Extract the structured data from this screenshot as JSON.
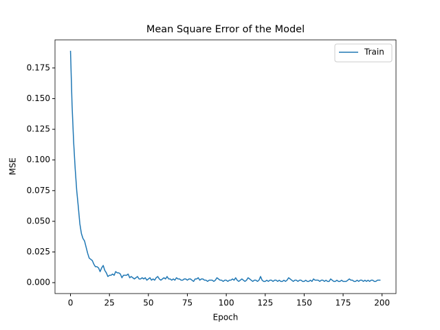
{
  "chart_data": {
    "type": "line",
    "title": "Mean Square Error of the Model",
    "x_label": "Epoch",
    "y_label": "MSE",
    "x": [
      0,
      1,
      2,
      3,
      4,
      5,
      6,
      7,
      8,
      9,
      10,
      11,
      12,
      13,
      14,
      15,
      16,
      17,
      18,
      19,
      20,
      21,
      22,
      23,
      24,
      25,
      26,
      27,
      28,
      29,
      30,
      31,
      32,
      33,
      34,
      35,
      36,
      37,
      38,
      39,
      40,
      41,
      42,
      43,
      44,
      45,
      46,
      47,
      48,
      49,
      50,
      51,
      52,
      53,
      54,
      55,
      56,
      57,
      58,
      59,
      60,
      61,
      62,
      63,
      64,
      65,
      66,
      67,
      68,
      69,
      70,
      71,
      72,
      73,
      74,
      75,
      76,
      77,
      78,
      79,
      80,
      81,
      82,
      83,
      84,
      85,
      86,
      87,
      88,
      89,
      90,
      91,
      92,
      93,
      94,
      95,
      96,
      97,
      98,
      99,
      100,
      101,
      102,
      103,
      104,
      105,
      106,
      107,
      108,
      109,
      110,
      111,
      112,
      113,
      114,
      115,
      116,
      117,
      118,
      119,
      120,
      121,
      122,
      123,
      124,
      125,
      126,
      127,
      128,
      129,
      130,
      131,
      132,
      133,
      134,
      135,
      136,
      137,
      138,
      139,
      140,
      141,
      142,
      143,
      144,
      145,
      146,
      147,
      148,
      149,
      150,
      151,
      152,
      153,
      154,
      155,
      156,
      157,
      158,
      159,
      160,
      161,
      162,
      163,
      164,
      165,
      166,
      167,
      168,
      169,
      170,
      171,
      172,
      173,
      174,
      175,
      176,
      177,
      178,
      179,
      180,
      181,
      182,
      183,
      184,
      185,
      186,
      187,
      188,
      189,
      190,
      191,
      192,
      193,
      194,
      195,
      196,
      197,
      198,
      199
    ],
    "series": [
      {
        "name": "Train",
        "color": "#1f77b4",
        "values": [
          0.189,
          0.145,
          0.115,
          0.093,
          0.075,
          0.062,
          0.048,
          0.04,
          0.036,
          0.034,
          0.029,
          0.024,
          0.02,
          0.019,
          0.018,
          0.015,
          0.013,
          0.013,
          0.012,
          0.009,
          0.012,
          0.014,
          0.01,
          0.008,
          0.005,
          0.006,
          0.006,
          0.007,
          0.006,
          0.009,
          0.008,
          0.008,
          0.007,
          0.004,
          0.006,
          0.006,
          0.006,
          0.007,
          0.004,
          0.005,
          0.004,
          0.003,
          0.004,
          0.005,
          0.003,
          0.003,
          0.004,
          0.003,
          0.004,
          0.002,
          0.003,
          0.004,
          0.002,
          0.003,
          0.002,
          0.004,
          0.005,
          0.003,
          0.002,
          0.003,
          0.004,
          0.003,
          0.005,
          0.003,
          0.003,
          0.002,
          0.003,
          0.002,
          0.004,
          0.003,
          0.003,
          0.002,
          0.002,
          0.003,
          0.003,
          0.002,
          0.003,
          0.003,
          0.002,
          0.001,
          0.003,
          0.003,
          0.004,
          0.002,
          0.003,
          0.003,
          0.002,
          0.002,
          0.001,
          0.002,
          0.002,
          0.002,
          0.001,
          0.002,
          0.004,
          0.003,
          0.002,
          0.002,
          0.001,
          0.002,
          0.002,
          0.001,
          0.002,
          0.002,
          0.003,
          0.002,
          0.004,
          0.002,
          0.001,
          0.002,
          0.003,
          0.002,
          0.001,
          0.002,
          0.004,
          0.003,
          0.002,
          0.001,
          0.002,
          0.002,
          0.001,
          0.002,
          0.005,
          0.002,
          0.001,
          0.001,
          0.002,
          0.001,
          0.002,
          0.002,
          0.001,
          0.002,
          0.002,
          0.001,
          0.002,
          0.001,
          0.001,
          0.002,
          0.001,
          0.002,
          0.004,
          0.003,
          0.002,
          0.001,
          0.002,
          0.002,
          0.001,
          0.002,
          0.002,
          0.001,
          0.001,
          0.002,
          0.001,
          0.001,
          0.002,
          0.001,
          0.003,
          0.002,
          0.002,
          0.002,
          0.001,
          0.002,
          0.002,
          0.001,
          0.002,
          0.001,
          0.001,
          0.003,
          0.002,
          0.001,
          0.001,
          0.002,
          0.001,
          0.001,
          0.002,
          0.001,
          0.001,
          0.001,
          0.002,
          0.003,
          0.002,
          0.002,
          0.001,
          0.001,
          0.002,
          0.001,
          0.002,
          0.002,
          0.001,
          0.002,
          0.001,
          0.002,
          0.001,
          0.002,
          0.002,
          0.001,
          0.001,
          0.002,
          0.002,
          0.002
        ]
      }
    ],
    "xlim": [
      -9.95,
      208.95
    ],
    "xticks": [
      0,
      25,
      50,
      75,
      100,
      125,
      150,
      175,
      200
    ],
    "ylim": [
      -0.0089,
      0.1979
    ],
    "yticks": [
      {
        "value": 0,
        "label": "0.000"
      },
      {
        "value": 0.025,
        "label": "0.025"
      },
      {
        "value": 0.05,
        "label": "0.050"
      },
      {
        "value": 0.075,
        "label": "0.075"
      },
      {
        "value": 0.1,
        "label": "0.100"
      },
      {
        "value": 0.125,
        "label": "0.125"
      },
      {
        "value": 0.15,
        "label": "0.150"
      },
      {
        "value": 0.175,
        "label": "0.175"
      }
    ],
    "grid": false,
    "legend": "upper right"
  }
}
